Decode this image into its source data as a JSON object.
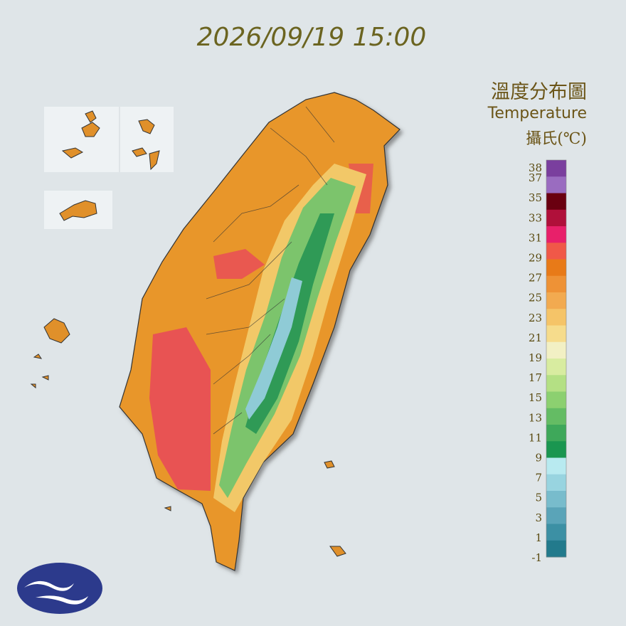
{
  "header": {
    "title": "2026/09/19 15:00"
  },
  "legend": {
    "title": "溫度分布圖",
    "subtitle": "Temperature",
    "unit": "攝氏(℃)",
    "ticks": [
      38,
      37,
      35,
      33,
      31,
      29,
      27,
      25,
      23,
      21,
      19,
      17,
      15,
      13,
      11,
      9,
      7,
      5,
      3,
      1,
      -1
    ],
    "colors": [
      "#7a3f9e",
      "#9a6cc0",
      "#6a0010",
      "#b0103a",
      "#e8206a",
      "#f05848",
      "#e87a18",
      "#ee9236",
      "#f2aa50",
      "#f5c468",
      "#f6dc8c",
      "#f2f0c4",
      "#d8eca0",
      "#b4e084",
      "#8cd070",
      "#64bc64",
      "#3ea85a",
      "#1a9650",
      "#b8eaf0",
      "#98d4e0",
      "#78bccc",
      "#5aa4b8",
      "#3c90a4",
      "#227a8c"
    ]
  }
}
